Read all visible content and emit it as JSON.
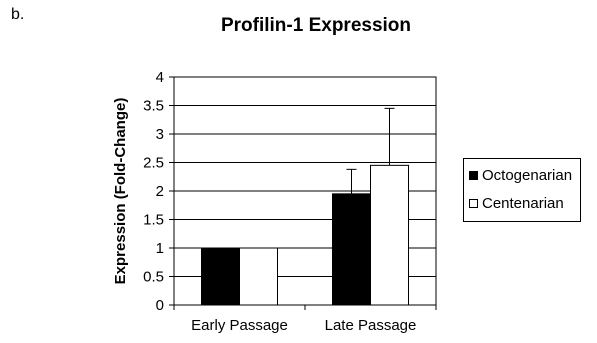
{
  "panel_label": "b.",
  "chart_data": {
    "type": "bar",
    "title": "Profilin-1 Expression",
    "xlabel": "",
    "ylabel": "Expression (Fold-Change)",
    "categories": [
      "Early Passage",
      "Late Passage"
    ],
    "ylim": [
      0,
      4
    ],
    "yticks": [
      "0",
      "0.5",
      "1",
      "1.5",
      "2",
      "2.5",
      "3",
      "3.5",
      "4"
    ],
    "grid": true,
    "legend_position": "right",
    "series": [
      {
        "name": "Octogenarian",
        "color": "#000000",
        "values": [
          1,
          1.95
        ],
        "error": [
          0,
          0.43
        ]
      },
      {
        "name": "Centenarian",
        "color": "#ffffff",
        "values": [
          1,
          2.45
        ],
        "error": [
          0,
          1.0
        ]
      }
    ]
  }
}
